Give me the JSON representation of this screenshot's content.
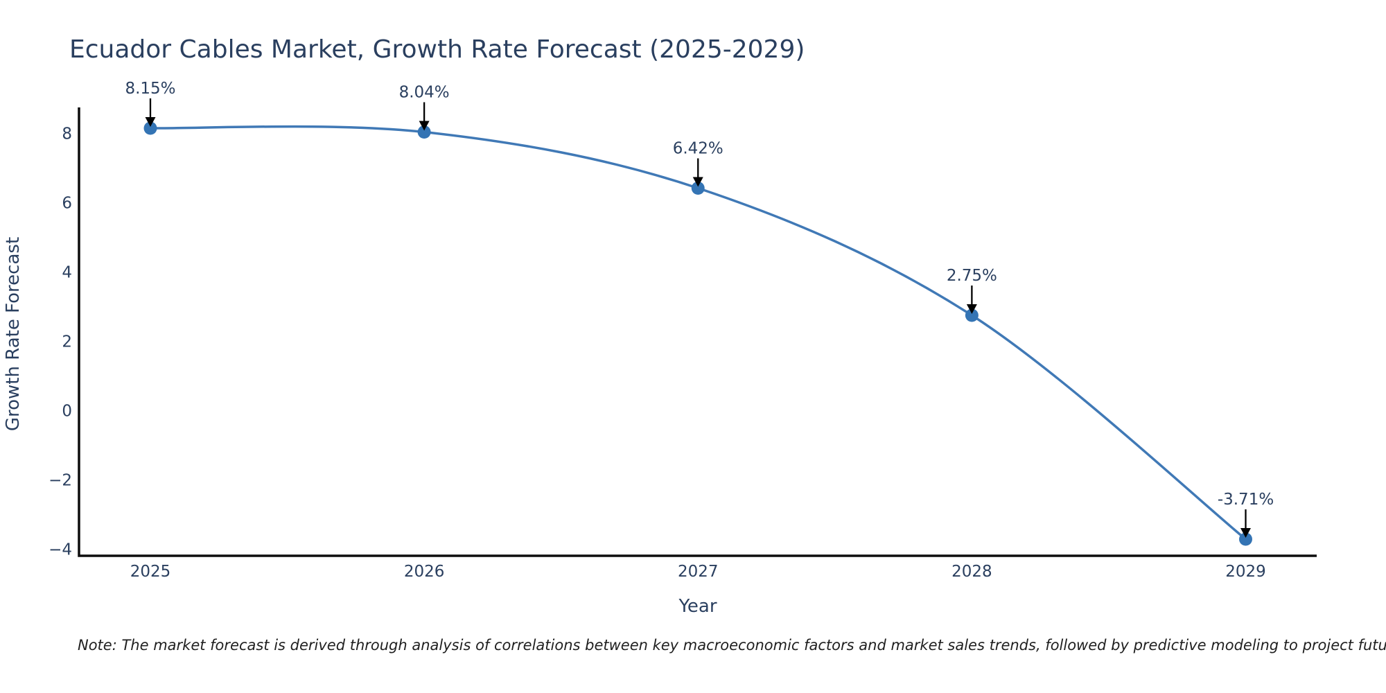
{
  "note": {
    "text": "Note: The market forecast is derived through analysis of correlations between key macroeconomic factors and market sales trends, followed by predictive modeling to project future sales"
  },
  "chart_data": {
    "type": "line",
    "title": "Ecuador Cables Market, Growth Rate Forecast (2025-2029)",
    "xlabel": "Year",
    "ylabel": "Growth Rate Forecast",
    "categories": [
      "2025",
      "2026",
      "2027",
      "2028",
      "2029"
    ],
    "series": [
      {
        "name": "Growth Rate Forecast",
        "values": [
          8.15,
          8.04,
          6.42,
          2.75,
          -3.71
        ]
      }
    ],
    "point_labels": [
      "8.15%",
      "8.04%",
      "6.42%",
      "2.75%",
      "-3.71%"
    ],
    "yticks": [
      8,
      6,
      4,
      2,
      0,
      -2,
      -4
    ],
    "ytick_labels": [
      "8",
      "6",
      "4",
      "2",
      "0",
      "−2",
      "−4"
    ],
    "ylim": [
      -4.19,
      8.75
    ],
    "grid": false,
    "legend": "none",
    "line_shape": "spline",
    "marker": "circle",
    "annotations": "arrow-down-to-point",
    "colors": {
      "line": "#4079b6",
      "marker": "#3474b4",
      "text": "#2a3f5f",
      "axis": "#0d0d0d",
      "arrow": "#000000",
      "background": "#ffffff"
    }
  }
}
